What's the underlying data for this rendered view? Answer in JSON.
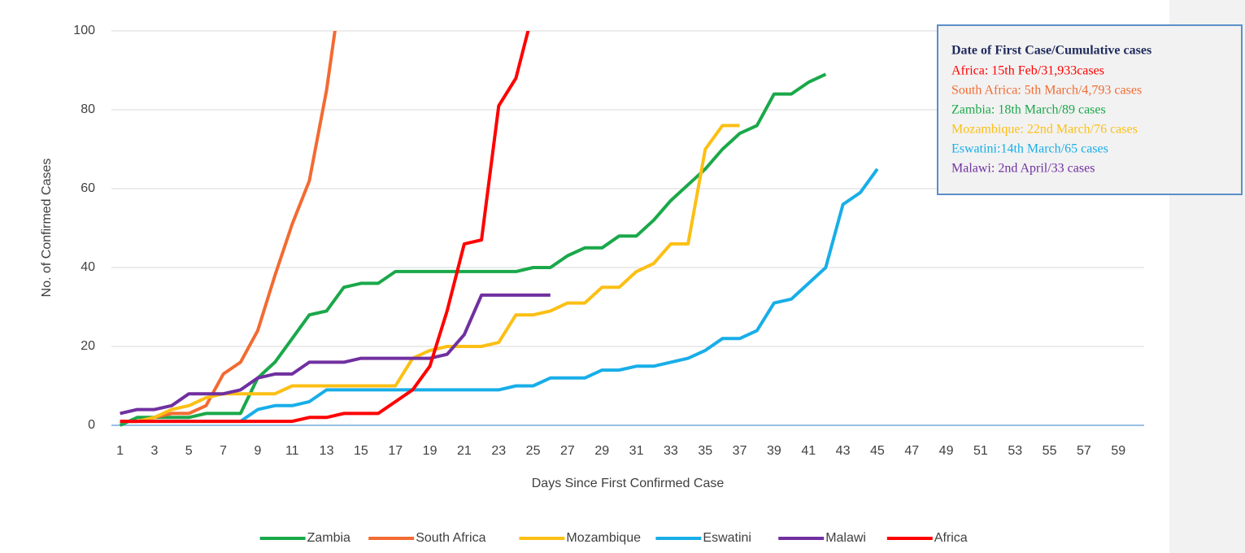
{
  "chart_data": {
    "type": "line",
    "xlabel": "Days Since First Confirmed Case",
    "ylabel": "No. of Confirmed Cases",
    "categories": [
      1,
      null,
      3,
      null,
      5,
      null,
      7,
      null,
      9,
      null,
      11,
      null,
      13,
      null,
      15,
      null,
      17,
      null,
      19,
      null,
      21,
      null,
      23,
      null,
      25,
      null,
      27,
      null,
      29,
      null,
      31,
      null,
      33,
      null,
      35,
      null,
      37,
      null,
      39,
      null,
      41,
      null,
      43,
      null,
      45,
      null,
      47,
      null,
      49,
      null,
      51,
      null,
      53,
      null,
      55,
      null,
      57,
      null,
      59,
      null
    ],
    "ylim": [
      0,
      100
    ],
    "yticks": [
      0,
      20,
      40,
      60,
      80,
      100
    ],
    "grid": true,
    "legend": "bottom",
    "series": [
      {
        "name": "Zambia",
        "color": "#1aa84a",
        "values": [
          0,
          2,
          2,
          2,
          2,
          3,
          3,
          3,
          12,
          16,
          22,
          28,
          29,
          35,
          36,
          36,
          39,
          39,
          39,
          39,
          39,
          39,
          39,
          39,
          40,
          40,
          43,
          45,
          45,
          48,
          48,
          52,
          57,
          61,
          65,
          70,
          74,
          76,
          84,
          84,
          87,
          89,
          null,
          null,
          null,
          null,
          null,
          null,
          null,
          null,
          null,
          null,
          null,
          null,
          null,
          null,
          null,
          null,
          null,
          null
        ]
      },
      {
        "name": "South Africa",
        "color": "#f26b32",
        "values": [
          1,
          1,
          2,
          3,
          3,
          5,
          13,
          16,
          24,
          38,
          51,
          62,
          85,
          116,
          null,
          null,
          null,
          null,
          null,
          null,
          null,
          null,
          null,
          null,
          null,
          null,
          null,
          null,
          null,
          null,
          null,
          null,
          null,
          null,
          null,
          null,
          null,
          null,
          null,
          null,
          null,
          null,
          null,
          null,
          null,
          null,
          null,
          null,
          null,
          null,
          null,
          null,
          null,
          null,
          null,
          null,
          null,
          null,
          null,
          null
        ]
      },
      {
        "name": "Mozambique",
        "color": "#fcbf14",
        "values": [
          1,
          1,
          2,
          4,
          5,
          7,
          8,
          8,
          8,
          8,
          10,
          10,
          10,
          10,
          10,
          10,
          10,
          17,
          19,
          20,
          20,
          20,
          21,
          28,
          28,
          29,
          31,
          31,
          35,
          35,
          39,
          41,
          46,
          46,
          70,
          76,
          76,
          null,
          null,
          null,
          null,
          null,
          null,
          null,
          null,
          null,
          null,
          null,
          null,
          null,
          null,
          null,
          null,
          null,
          null,
          null,
          null,
          null,
          null,
          null
        ]
      },
      {
        "name": "Eswatini",
        "color": "#18aee8",
        "values": [
          1,
          1,
          1,
          1,
          1,
          1,
          1,
          1,
          4,
          5,
          5,
          6,
          9,
          9,
          9,
          9,
          9,
          9,
          9,
          9,
          9,
          9,
          9,
          10,
          10,
          12,
          12,
          12,
          14,
          14,
          15,
          15,
          16,
          17,
          19,
          22,
          22,
          24,
          31,
          32,
          36,
          40,
          56,
          59,
          65,
          null,
          null,
          null,
          null,
          null,
          null,
          null,
          null,
          null,
          null,
          null,
          null,
          null,
          null,
          null
        ]
      },
      {
        "name": "Malawi",
        "color": "#7030a0",
        "values": [
          3,
          4,
          4,
          5,
          8,
          8,
          8,
          9,
          12,
          13,
          13,
          16,
          16,
          16,
          17,
          17,
          17,
          17,
          17,
          18,
          23,
          33,
          33,
          33,
          33,
          33,
          null,
          null,
          null,
          null,
          null,
          null,
          null,
          null,
          null,
          null,
          null,
          null,
          null,
          null,
          null,
          null,
          null,
          null,
          null,
          null,
          null,
          null,
          null,
          null,
          null,
          null,
          null,
          null,
          null,
          null,
          null,
          null,
          null,
          null
        ]
      },
      {
        "name": "Africa",
        "color": "#ff0000",
        "values": [
          1,
          1,
          1,
          1,
          1,
          1,
          1,
          1,
          1,
          1,
          1,
          2,
          2,
          3,
          3,
          3,
          6,
          9,
          15,
          29,
          46,
          47,
          81,
          88,
          105,
          null,
          null,
          null,
          null,
          null,
          null,
          null,
          null,
          null,
          null,
          null,
          null,
          null,
          null,
          null,
          null,
          null,
          null,
          null,
          null,
          null,
          null,
          null,
          null,
          null,
          null,
          null,
          null,
          null,
          null,
          null,
          null,
          null,
          null,
          null
        ]
      }
    ],
    "annotation_box": {
      "title": "Date of First Case/Cumulative cases",
      "entries": [
        {
          "text": "Africa: 15th Feb/31,933cases",
          "color": "#ff0000"
        },
        {
          "text": "South Africa: 5th March/4,793 cases",
          "color": "#f26b32"
        },
        {
          "text": "Zambia: 18th March/89 cases",
          "color": "#1aa84a"
        },
        {
          "text": "Mozambique: 22nd March/76 cases",
          "color": "#fcbf14"
        },
        {
          "text": "Eswatini:14th March/65 cases",
          "color": "#18aee8"
        },
        {
          "text": "Malawi: 2nd April/33 cases",
          "color": "#7030a0"
        }
      ]
    }
  }
}
